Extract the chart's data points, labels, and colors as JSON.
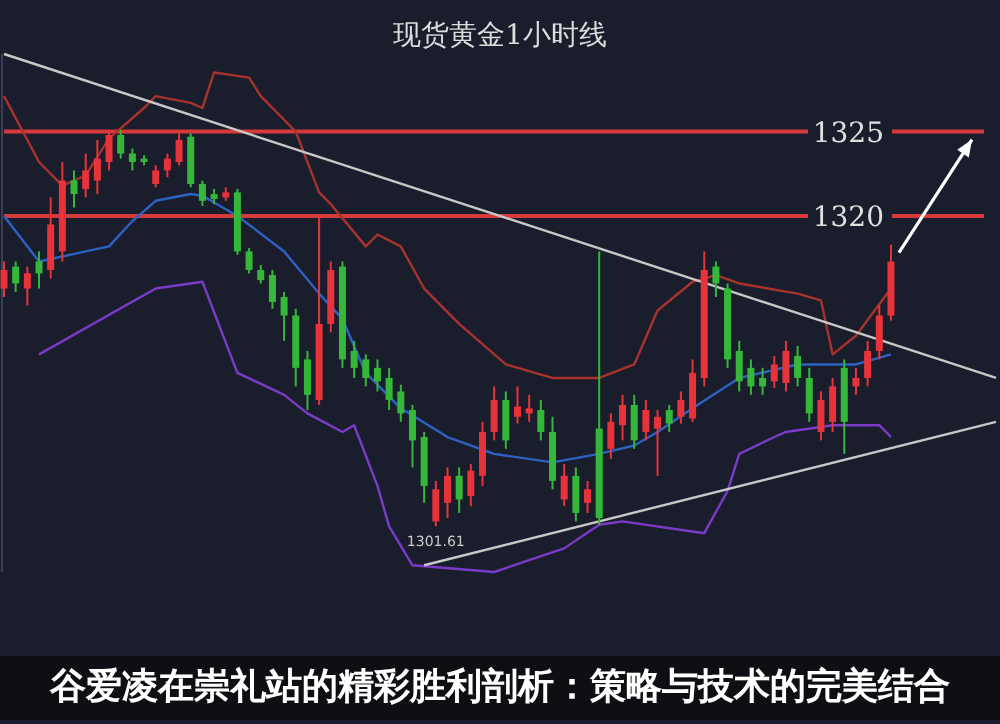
{
  "chart_data": {
    "type": "candlestick",
    "title": "现货黄金1小时线",
    "categories": [
      null,
      null,
      null,
      null,
      null,
      null,
      null,
      null,
      null,
      null,
      null,
      null,
      null,
      null,
      null,
      null,
      null,
      null,
      null,
      null,
      null,
      null,
      null,
      null,
      null,
      null,
      null,
      null,
      null,
      null,
      null,
      null,
      null,
      null,
      null,
      null,
      null,
      null,
      null,
      null,
      null,
      null,
      null,
      null,
      null,
      null,
      null,
      null,
      null,
      null,
      null,
      null,
      null,
      null,
      null,
      null,
      null,
      null,
      null,
      null,
      null,
      null,
      null,
      null,
      null,
      null,
      null,
      null,
      null,
      null,
      null,
      null,
      null,
      null,
      null,
      null,
      null,
      null,
      null,
      null,
      null,
      null,
      null,
      null,
      null,
      null
    ],
    "ohlc": [
      [
        1315.7,
        1317.3,
        1315.2,
        1316.8
      ],
      [
        1317.0,
        1317.3,
        1315.5,
        1316.0
      ],
      [
        1315.7,
        1317.0,
        1314.7,
        1316.6
      ],
      [
        1317.3,
        1317.9,
        1315.7,
        1316.6
      ],
      [
        1316.8,
        1321.1,
        1316.3,
        1319.5
      ],
      [
        1317.9,
        1323.2,
        1317.3,
        1322.1
      ],
      [
        1322.1,
        1322.7,
        1320.5,
        1321.3
      ],
      [
        1321.6,
        1323.7,
        1321.1,
        1322.7
      ],
      [
        1322.1,
        1324.5,
        1321.3,
        1323.4
      ],
      [
        1323.2,
        1325.1,
        1322.7,
        1324.8
      ],
      [
        1324.8,
        1325.1,
        1323.4,
        1323.7
      ],
      [
        1323.7,
        1324.0,
        1322.7,
        1323.2
      ],
      [
        1323.4,
        1323.6,
        1323.0,
        1323.2
      ],
      [
        1321.9,
        1323.0,
        1321.7,
        1322.7
      ],
      [
        1322.7,
        1323.7,
        1322.3,
        1323.4
      ],
      [
        1323.2,
        1324.9,
        1323.0,
        1324.5
      ],
      [
        1324.7,
        1324.9,
        1321.7,
        1321.9
      ],
      [
        1321.9,
        1322.1,
        1320.6,
        1320.9
      ],
      [
        1321.3,
        1321.6,
        1320.7,
        1321.0
      ],
      [
        1321.1,
        1321.7,
        1320.9,
        1321.4
      ],
      [
        1321.4,
        1321.6,
        1317.7,
        1317.9
      ],
      [
        1317.9,
        1318.1,
        1316.6,
        1316.8
      ],
      [
        1316.8,
        1317.1,
        1316.0,
        1316.2
      ],
      [
        1316.5,
        1316.8,
        1314.5,
        1314.9
      ],
      [
        1315.2,
        1315.5,
        1312.6,
        1314.1
      ],
      [
        1314.1,
        1314.5,
        1309.9,
        1311.0
      ],
      [
        1311.5,
        1312.0,
        1308.5,
        1309.4
      ],
      [
        1309.1,
        1320.0,
        1308.8,
        1313.6
      ],
      [
        1313.6,
        1317.3,
        1313.1,
        1316.8
      ],
      [
        1317.0,
        1317.3,
        1311.0,
        1311.5
      ],
      [
        1312.0,
        1312.6,
        1310.4,
        1311.0
      ],
      [
        1311.5,
        1311.8,
        1309.9,
        1310.4
      ],
      [
        1311.0,
        1311.5,
        1309.6,
        1310.2
      ],
      [
        1310.4,
        1311.0,
        1308.5,
        1309.1
      ],
      [
        1309.6,
        1310.0,
        1307.8,
        1308.3
      ],
      [
        1308.5,
        1308.8,
        1305.1,
        1306.7
      ],
      [
        1306.9,
        1307.2,
        1303.0,
        1304.0
      ],
      [
        1301.9,
        1304.3,
        1301.61,
        1303.8
      ],
      [
        1303.0,
        1305.1,
        1302.1,
        1304.6
      ],
      [
        1304.6,
        1305.1,
        1302.4,
        1303.2
      ],
      [
        1303.4,
        1305.3,
        1302.8,
        1304.9
      ],
      [
        1304.6,
        1307.8,
        1304.0,
        1307.2
      ],
      [
        1307.2,
        1309.9,
        1306.7,
        1309.1
      ],
      [
        1309.1,
        1309.6,
        1306.2,
        1306.7
      ],
      [
        1308.1,
        1309.9,
        1307.7,
        1308.7
      ],
      [
        1308.3,
        1309.4,
        1307.8,
        1308.6
      ],
      [
        1308.5,
        1309.1,
        1306.7,
        1307.2
      ],
      [
        1307.2,
        1308.1,
        1303.8,
        1304.3
      ],
      [
        1303.2,
        1305.3,
        1302.8,
        1304.6
      ],
      [
        1304.6,
        1305.1,
        1301.9,
        1302.4
      ],
      [
        1303.0,
        1304.3,
        1302.4,
        1303.8
      ],
      [
        1307.4,
        1317.9,
        1301.7,
        1302.1
      ],
      [
        1306.2,
        1308.3,
        1305.6,
        1307.8
      ],
      [
        1307.6,
        1309.4,
        1306.7,
        1308.8
      ],
      [
        1308.8,
        1309.4,
        1306.2,
        1306.7
      ],
      [
        1307.2,
        1309.1,
        1306.7,
        1308.5
      ],
      [
        1307.4,
        1308.5,
        1304.6,
        1308.1
      ],
      [
        1308.5,
        1308.8,
        1307.2,
        1307.7
      ],
      [
        1308.1,
        1309.6,
        1307.7,
        1309.1
      ],
      [
        1308.0,
        1311.5,
        1307.8,
        1310.7
      ],
      [
        1310.4,
        1317.9,
        1309.9,
        1316.8
      ],
      [
        1317.0,
        1317.3,
        1315.2,
        1316.0
      ],
      [
        1315.7,
        1316.0,
        1311.0,
        1311.5
      ],
      [
        1312.0,
        1312.6,
        1309.6,
        1310.2
      ],
      [
        1311.0,
        1311.5,
        1309.4,
        1309.9
      ],
      [
        1310.4,
        1311.0,
        1309.4,
        1309.9
      ],
      [
        1310.2,
        1311.7,
        1309.8,
        1311.2
      ],
      [
        1310.1,
        1312.6,
        1309.6,
        1312.0
      ],
      [
        1311.7,
        1312.3,
        1309.9,
        1310.4
      ],
      [
        1310.4,
        1311.0,
        1307.8,
        1308.3
      ],
      [
        1307.2,
        1309.6,
        1306.7,
        1309.1
      ],
      [
        1307.8,
        1310.4,
        1307.2,
        1309.9
      ],
      [
        1311.0,
        1311.5,
        1305.9,
        1307.8
      ],
      [
        1309.9,
        1311.0,
        1309.4,
        1310.4
      ],
      [
        1310.4,
        1312.6,
        1309.9,
        1312.0
      ],
      [
        1312.0,
        1314.7,
        1311.5,
        1314.1
      ],
      [
        1314.1,
        1318.3,
        1313.8,
        1317.3
      ],
      null,
      null,
      null,
      null,
      null,
      null,
      null,
      null,
      null
    ],
    "series": [
      {
        "type": "line",
        "color": "#a8332e",
        "values": [
          1327.1,
          null,
          null,
          1323.2,
          null,
          1321.8,
          null,
          1322.4,
          null,
          1324.6,
          null,
          null,
          1326.4,
          1327.1,
          null,
          null,
          1326.7,
          1326.4,
          1328.5,
          null,
          null,
          1328.2,
          1327.1,
          null,
          null,
          1325.0,
          null,
          1321.4,
          1320.7,
          null,
          null,
          1318.2,
          1318.9,
          null,
          1318.2,
          null,
          1315.7,
          null,
          null,
          1313.6,
          null,
          null,
          null,
          1311.2,
          null,
          null,
          null,
          1310.4,
          null,
          null,
          null,
          1310.4,
          null,
          null,
          1311.2,
          null,
          1314.4,
          null,
          null,
          1316.1,
          null,
          1316.5,
          null,
          1316.0,
          null,
          null,
          null,
          null,
          1315.4,
          null,
          1315.0,
          1311.8,
          null,
          1312.9,
          null,
          null,
          1315.7,
          null,
          null,
          null,
          null,
          null,
          null,
          null,
          null,
          null
        ]
      },
      {
        "type": "line",
        "color": "#2d62c4",
        "values": [
          1320.0,
          null,
          null,
          1317.3,
          null,
          null,
          null,
          1317.9,
          null,
          1318.2,
          null,
          1319.7,
          null,
          1320.9,
          null,
          null,
          1321.3,
          1321.2,
          null,
          null,
          1320.0,
          null,
          null,
          null,
          1317.9,
          null,
          null,
          1315.4,
          null,
          1313.9,
          null,
          1310.7,
          null,
          null,
          1308.6,
          null,
          null,
          null,
          1306.9,
          null,
          null,
          null,
          1305.9,
          null,
          null,
          null,
          null,
          1305.4,
          null,
          null,
          null,
          1305.9,
          null,
          null,
          1306.4,
          null,
          1307.2,
          null,
          null,
          1308.6,
          null,
          null,
          null,
          1310.4,
          null,
          null,
          null,
          null,
          1311.2,
          null,
          null,
          null,
          null,
          1311.2,
          null,
          null,
          1311.8,
          null,
          null,
          null,
          null,
          null,
          null,
          null,
          null,
          null
        ]
      },
      {
        "type": "line",
        "color": "#7b3bc9",
        "values": [
          null,
          null,
          null,
          1311.8,
          null,
          null,
          null,
          null,
          null,
          null,
          null,
          null,
          null,
          1315.7,
          null,
          null,
          null,
          1316.1,
          null,
          null,
          1310.7,
          null,
          null,
          null,
          1309.4,
          null,
          1308.3,
          null,
          null,
          1307.2,
          1307.6,
          null,
          1304.0,
          1301.6,
          null,
          1299.3,
          null,
          null,
          null,
          null,
          null,
          null,
          1298.9,
          null,
          null,
          null,
          null,
          null,
          1300.3,
          null,
          null,
          1301.7,
          null,
          1301.9,
          null,
          null,
          null,
          null,
          null,
          null,
          1301.2,
          null,
          1303.7,
          1305.9,
          null,
          null,
          1306.9,
          1307.2,
          null,
          null,
          null,
          1307.6,
          null,
          null,
          null,
          1307.6,
          1306.9,
          null,
          null,
          null,
          null,
          null,
          null,
          null,
          null,
          null
        ]
      },
      {
        "type": "line",
        "color": "#c8c8c8",
        "values": [
          1329.6,
          null,
          null,
          null,
          null,
          null,
          null,
          null,
          null,
          null,
          null,
          null,
          null,
          null,
          null,
          null,
          null,
          null,
          null,
          null,
          null,
          null,
          null,
          null,
          null,
          null,
          null,
          null,
          null,
          null,
          null,
          null,
          null,
          null,
          null,
          null,
          null,
          null,
          null,
          null,
          null,
          null,
          null,
          null,
          null,
          null,
          null,
          null,
          null,
          null,
          null,
          null,
          null,
          null,
          null,
          null,
          null,
          null,
          null,
          null,
          null,
          null,
          null,
          null,
          null,
          null,
          null,
          null,
          null,
          null,
          null,
          null,
          null,
          null,
          null,
          null,
          null,
          null,
          null,
          null,
          null,
          null,
          null,
          null,
          null,
          1310.4
        ]
      },
      {
        "type": "line",
        "color": "#c8c8c8",
        "values": [
          null,
          null,
          null,
          null,
          null,
          null,
          null,
          null,
          null,
          null,
          null,
          null,
          null,
          null,
          null,
          null,
          null,
          null,
          null,
          null,
          null,
          null,
          null,
          null,
          null,
          null,
          null,
          null,
          null,
          null,
          null,
          null,
          null,
          null,
          null,
          null,
          1299.3,
          null,
          null,
          null,
          null,
          null,
          null,
          null,
          null,
          null,
          null,
          null,
          null,
          null,
          null,
          null,
          null,
          null,
          null,
          null,
          null,
          null,
          null,
          null,
          null,
          null,
          null,
          null,
          null,
          null,
          null,
          null,
          null,
          null,
          null,
          null,
          null,
          null,
          null,
          null,
          null,
          null,
          null,
          null,
          null,
          null,
          null,
          null,
          null,
          1307.8
        ]
      }
    ],
    "ylim": [
      1298.9,
      1329.6
    ],
    "yticks": [
      1325,
      1320
    ],
    "ref_lines": [
      {
        "axis": "y",
        "value": 1325,
        "color": "#d63a3a"
      },
      {
        "axis": "y",
        "value": 1320,
        "color": "#d63a3a"
      }
    ],
    "annotations": [
      "1301.61",
      "谷爱凌在崇礼站的精彩胜利剖析：策略与技术的完美结合"
    ]
  }
}
